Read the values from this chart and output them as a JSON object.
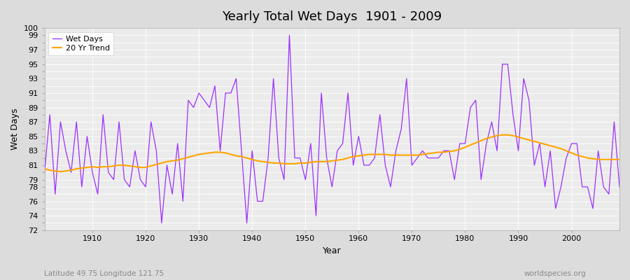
{
  "title": "Yearly Total Wet Days  1901 - 2009",
  "xlabel": "Year",
  "ylabel": "Wet Days",
  "bottom_left_label": "Latitude 49.75 Longitude 121.75",
  "bottom_right_label": "worldspecies.org",
  "ylim": [
    72,
    100
  ],
  "xlim": [
    1901,
    2009
  ],
  "wet_days_color": "#9B30FF",
  "trend_color": "#FFA500",
  "background_color": "#DCDCDC",
  "plot_bg_color": "#EBEBEB",
  "grid_color": "#FFFFFF",
  "legend_labels": [
    "Wet Days",
    "20 Yr Trend"
  ],
  "years": [
    1901,
    1902,
    1903,
    1904,
    1905,
    1906,
    1907,
    1908,
    1909,
    1910,
    1911,
    1912,
    1913,
    1914,
    1915,
    1916,
    1917,
    1918,
    1919,
    1920,
    1921,
    1922,
    1923,
    1924,
    1925,
    1926,
    1927,
    1928,
    1929,
    1930,
    1931,
    1932,
    1933,
    1934,
    1935,
    1936,
    1937,
    1938,
    1939,
    1940,
    1941,
    1942,
    1943,
    1944,
    1945,
    1946,
    1947,
    1948,
    1949,
    1950,
    1951,
    1952,
    1953,
    1954,
    1955,
    1956,
    1957,
    1958,
    1959,
    1960,
    1961,
    1962,
    1963,
    1964,
    1965,
    1966,
    1967,
    1968,
    1969,
    1970,
    1971,
    1972,
    1973,
    1974,
    1975,
    1976,
    1977,
    1978,
    1979,
    1980,
    1981,
    1982,
    1983,
    1984,
    1985,
    1986,
    1987,
    1988,
    1989,
    1990,
    1991,
    1992,
    1993,
    1994,
    1995,
    1996,
    1997,
    1998,
    1999,
    2000,
    2001,
    2002,
    2003,
    2004,
    2005,
    2006,
    2007,
    2008,
    2009
  ],
  "wet_days": [
    80,
    88,
    77,
    87,
    83,
    80,
    87,
    78,
    85,
    80,
    77,
    88,
    80,
    79,
    87,
    79,
    78,
    83,
    79,
    78,
    87,
    83,
    73,
    81,
    77,
    84,
    76,
    90,
    89,
    91,
    90,
    89,
    92,
    83,
    91,
    91,
    93,
    83,
    73,
    83,
    76,
    76,
    82,
    93,
    82,
    79,
    99,
    82,
    82,
    79,
    84,
    74,
    91,
    82,
    78,
    83,
    84,
    91,
    81,
    85,
    81,
    81,
    82,
    88,
    81,
    78,
    83,
    86,
    93,
    81,
    82,
    83,
    82,
    82,
    82,
    83,
    83,
    79,
    84,
    84,
    89,
    90,
    79,
    84,
    87,
    83,
    95,
    95,
    88,
    83,
    93,
    90,
    81,
    84,
    78,
    83,
    75,
    78,
    82,
    84,
    84,
    78,
    78,
    75,
    83,
    78,
    77,
    87,
    78
  ],
  "trend_years": [
    1901,
    1902,
    1903,
    1904,
    1905,
    1906,
    1907,
    1908,
    1909,
    1910,
    1911,
    1912,
    1913,
    1914,
    1915,
    1916,
    1917,
    1918,
    1919,
    1920,
    1921,
    1922,
    1923,
    1924,
    1925,
    1926,
    1927,
    1928,
    1929,
    1930,
    1931,
    1932,
    1933,
    1934,
    1935,
    1936,
    1937,
    1938,
    1939,
    1940,
    1941,
    1942,
    1943,
    1944,
    1945,
    1946,
    1947,
    1948,
    1949,
    1950,
    1951,
    1952,
    1953,
    1954,
    1955,
    1956,
    1957,
    1958,
    1959,
    1960,
    1961,
    1962,
    1963,
    1964,
    1965,
    1966,
    1967,
    1968,
    1969,
    1970,
    1971,
    1972,
    1973,
    1974,
    1975,
    1976,
    1977,
    1978,
    1979,
    1980,
    1981,
    1982,
    1983,
    1984,
    1985,
    1986,
    1987,
    1988,
    1989,
    1990,
    1991,
    1992,
    1993,
    1994,
    1995,
    1996,
    1997,
    1998,
    1999,
    2000,
    2001,
    2002,
    2003,
    2004,
    2005,
    2006,
    2007,
    2008,
    2009
  ],
  "trend_values": [
    80.5,
    80.3,
    80.2,
    80.1,
    80.2,
    80.3,
    80.5,
    80.6,
    80.7,
    80.8,
    80.7,
    80.8,
    80.8,
    80.9,
    81.0,
    81.0,
    80.9,
    80.8,
    80.7,
    80.7,
    80.9,
    81.1,
    81.3,
    81.5,
    81.6,
    81.7,
    81.9,
    82.1,
    82.3,
    82.5,
    82.6,
    82.7,
    82.8,
    82.8,
    82.7,
    82.5,
    82.3,
    82.2,
    82.0,
    81.8,
    81.6,
    81.5,
    81.4,
    81.3,
    81.3,
    81.2,
    81.2,
    81.2,
    81.3,
    81.3,
    81.4,
    81.5,
    81.5,
    81.5,
    81.6,
    81.7,
    81.8,
    82.0,
    82.2,
    82.3,
    82.4,
    82.5,
    82.5,
    82.5,
    82.5,
    82.4,
    82.4,
    82.4,
    82.4,
    82.4,
    82.4,
    82.5,
    82.6,
    82.7,
    82.8,
    82.8,
    82.9,
    83.0,
    83.2,
    83.5,
    83.8,
    84.1,
    84.4,
    84.7,
    84.9,
    85.1,
    85.2,
    85.2,
    85.1,
    84.9,
    84.7,
    84.5,
    84.3,
    84.1,
    83.9,
    83.7,
    83.5,
    83.3,
    83.0,
    82.7,
    82.4,
    82.2,
    82.0,
    81.9,
    81.8,
    81.8,
    81.8,
    81.8,
    81.8
  ],
  "ytick_labeled": [
    72,
    74,
    76,
    78,
    79,
    81,
    83,
    85,
    87,
    89,
    91,
    93,
    95,
    97,
    99,
    100
  ],
  "ytick_all": [
    72,
    73,
    74,
    75,
    76,
    77,
    78,
    79,
    80,
    81,
    82,
    83,
    84,
    85,
    86,
    87,
    88,
    89,
    90,
    91,
    92,
    93,
    94,
    95,
    96,
    97,
    98,
    99,
    100
  ]
}
